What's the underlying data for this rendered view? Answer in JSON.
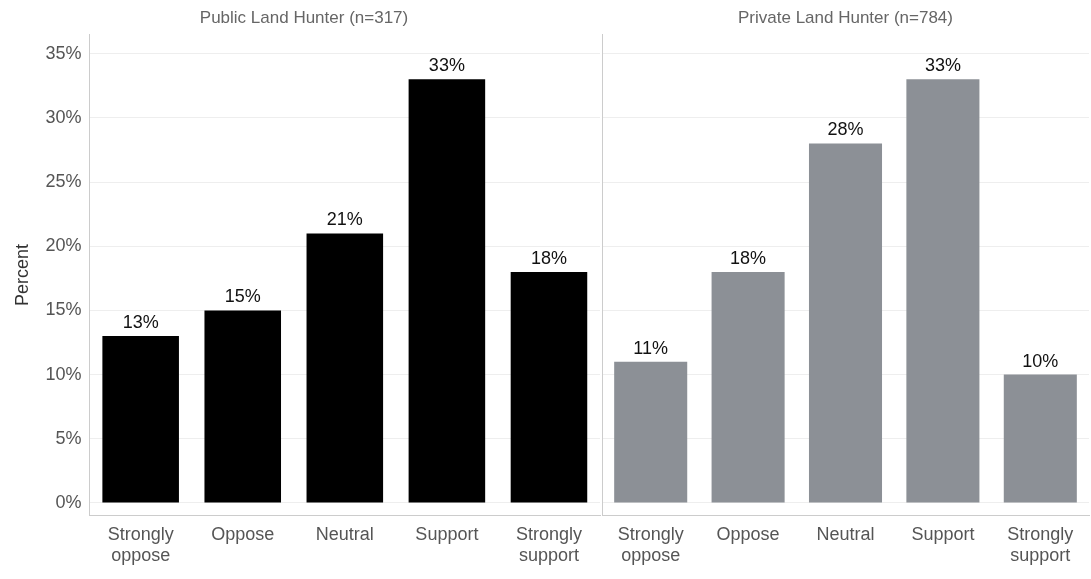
{
  "chart_data": [
    {
      "type": "bar",
      "title": "Public Land Hunter (n=317)",
      "ylabel": "Percent",
      "categories": [
        "Strongly oppose",
        "Oppose",
        "Neutral",
        "Support",
        "Strongly support"
      ],
      "values": [
        13,
        15,
        21,
        33,
        18
      ],
      "color": "#000000",
      "ylim": [
        -1,
        36.5
      ],
      "yticks": [
        {
          "value": 0,
          "label": "0%"
        },
        {
          "value": 5,
          "label": "5%"
        },
        {
          "value": 10,
          "label": "10%"
        },
        {
          "value": 15,
          "label": "15%"
        },
        {
          "value": 20,
          "label": "20%"
        },
        {
          "value": 25,
          "label": "25%"
        },
        {
          "value": 30,
          "label": "30%"
        },
        {
          "value": 35,
          "label": "35%"
        }
      ],
      "value_labels": [
        "13%",
        "15%",
        "21%",
        "33%",
        "18%"
      ],
      "grid": "y"
    },
    {
      "type": "bar",
      "title": "Private Land Hunter (n=784)",
      "categories": [
        "Strongly oppose",
        "Oppose",
        "Neutral",
        "Support",
        "Strongly support"
      ],
      "values": [
        11,
        18,
        28,
        33,
        10
      ],
      "color": "#8c9096",
      "ylim": [
        -1,
        36.5
      ],
      "yticks": [
        0,
        5,
        10,
        15,
        20,
        25,
        30,
        35
      ],
      "value_labels": [
        "11%",
        "18%",
        "28%",
        "33%",
        "10%"
      ],
      "grid": "y",
      "tick_labels": "x"
    }
  ]
}
